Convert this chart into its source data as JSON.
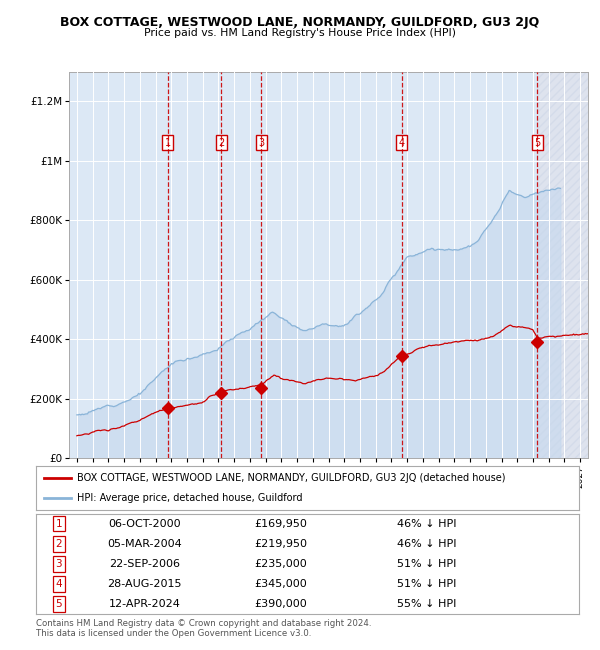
{
  "title": "BOX COTTAGE, WESTWOOD LANE, NORMANDY, GUILDFORD, GU3 2JQ",
  "subtitle": "Price paid vs. HM Land Registry's House Price Index (HPI)",
  "ylim": [
    0,
    1300000
  ],
  "yticks": [
    0,
    200000,
    400000,
    600000,
    800000,
    1000000,
    1200000
  ],
  "ytick_labels": [
    "£0",
    "£200K",
    "£400K",
    "£600K",
    "£800K",
    "£1M",
    "£1.2M"
  ],
  "year_start": 1995,
  "year_end": 2027,
  "xlim_left": 1994.5,
  "xlim_right": 2027.5,
  "hpi_fill_color": "#c5d8ee",
  "hpi_line_color": "#8ab4d8",
  "sold_color": "#cc0000",
  "vline_color": "#cc0000",
  "plot_bg_color": "#ffffff",
  "span_bg_color": "#dce8f5",
  "hatch_bg_color": "#d0d8e8",
  "sales": [
    {
      "label": "1",
      "date": "06-OCT-2000",
      "year": 2000.77,
      "price": 169950,
      "pct": "46%"
    },
    {
      "label": "2",
      "date": "05-MAR-2004",
      "year": 2004.18,
      "price": 219950,
      "pct": "46%"
    },
    {
      "label": "3",
      "date": "22-SEP-2006",
      "year": 2006.73,
      "price": 235000,
      "pct": "51%"
    },
    {
      "label": "4",
      "date": "28-AUG-2015",
      "year": 2015.66,
      "price": 345000,
      "pct": "51%"
    },
    {
      "label": "5",
      "date": "12-APR-2024",
      "year": 2024.28,
      "price": 390000,
      "pct": "55%"
    }
  ],
  "legend_line1": "BOX COTTAGE, WESTWOOD LANE, NORMANDY, GUILDFORD, GU3 2JQ (detached house)",
  "legend_line2": "HPI: Average price, detached house, Guildford",
  "table_rows": [
    {
      "label": "1",
      "date": "06-OCT-2000",
      "price": "£169,950",
      "pct": "46% ↓ HPI"
    },
    {
      "label": "2",
      "date": "05-MAR-2004",
      "price": "£219,950",
      "pct": "46% ↓ HPI"
    },
    {
      "label": "3",
      "date": "22-SEP-2006",
      "price": "£235,000",
      "pct": "51% ↓ HPI"
    },
    {
      "label": "4",
      "date": "28-AUG-2015",
      "price": "£345,000",
      "pct": "51% ↓ HPI"
    },
    {
      "label": "5",
      "date": "12-APR-2024",
      "price": "£390,000",
      "pct": "55% ↓ HPI"
    }
  ],
  "footer": "Contains HM Land Registry data © Crown copyright and database right 2024.\nThis data is licensed under the Open Government Licence v3.0."
}
